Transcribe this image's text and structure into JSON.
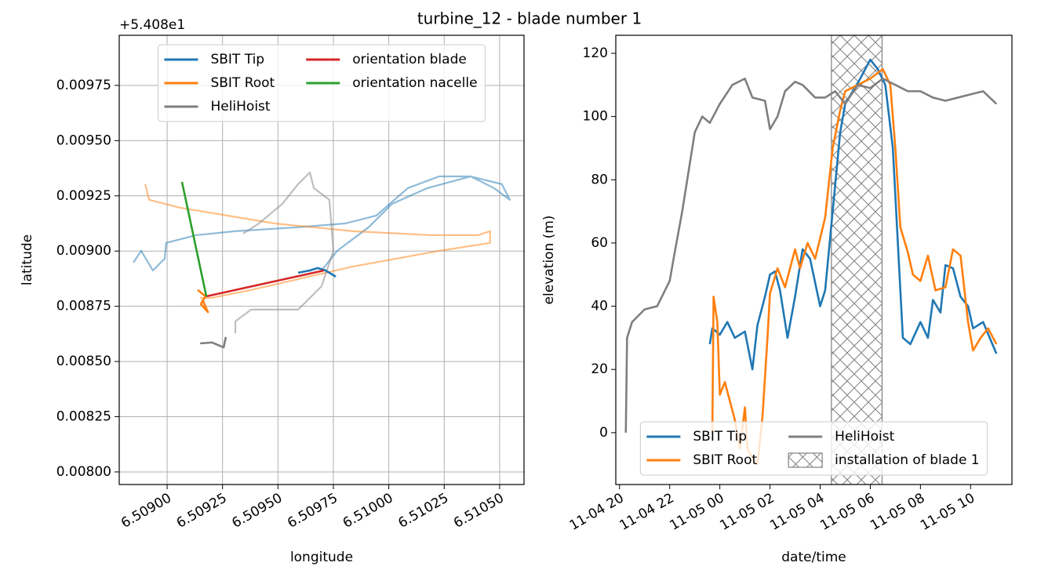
{
  "title": "turbine_12 - blade number 1",
  "chart_data": [
    {
      "type": "line",
      "offset_label": "+5.408e1",
      "xlabel": "longitude",
      "ylabel": "latitude",
      "xlim": [
        6.508784,
        6.51061
      ],
      "ylim": [
        0.007943,
        0.009977
      ],
      "grid": true,
      "xticks": [
        {
          "value": 6.509,
          "label": "6.50900"
        },
        {
          "value": 6.50925,
          "label": "6.50925"
        },
        {
          "value": 6.5095,
          "label": "6.50950"
        },
        {
          "value": 6.50975,
          "label": "6.50975"
        },
        {
          "value": 6.51,
          "label": "6.51000"
        },
        {
          "value": 6.51025,
          "label": "6.51025"
        },
        {
          "value": 6.5105,
          "label": "6.51050"
        }
      ],
      "yticks": [
        {
          "value": 0.008,
          "label": "0.00800"
        },
        {
          "value": 0.00825,
          "label": "0.00825"
        },
        {
          "value": 0.0085,
          "label": "0.00850"
        },
        {
          "value": 0.00875,
          "label": "0.00875"
        },
        {
          "value": 0.009,
          "label": "0.00900"
        },
        {
          "value": 0.00925,
          "label": "0.00925"
        },
        {
          "value": 0.0095,
          "label": "0.00950"
        },
        {
          "value": 0.00975,
          "label": "0.00975"
        }
      ],
      "legend": {
        "loc": "upper center",
        "ncol": 2
      },
      "series": [
        {
          "name": "SBIT Tip",
          "color": "#1f77b4",
          "x": [
            6.509591,
            6.509644,
            6.509679,
            6.509715,
            6.509761
          ],
          "y": [
            0.008902,
            0.008912,
            0.008923,
            0.008912,
            0.008884
          ],
          "track_x": [
            6.508848,
            6.508883,
            6.508936,
            6.508989,
            6.508996,
            6.509131,
            6.509308,
            6.509591,
            6.509803,
            6.509944,
            6.510086,
            6.510227,
            6.510369,
            6.51051,
            6.510546,
            6.510475,
            6.510369,
            6.510174,
            6.510015,
            6.509909,
            6.509767,
            6.509697
          ],
          "track_y": [
            0.008948,
            0.009001,
            0.008912,
            0.008966,
            0.009037,
            0.009072,
            0.00909,
            0.009108,
            0.009125,
            0.009161,
            0.009285,
            0.009338,
            0.009338,
            0.009303,
            0.009232,
            0.009285,
            0.009338,
            0.009285,
            0.009214,
            0.009108,
            0.009001,
            0.008912
          ]
        },
        {
          "name": "SBIT Root",
          "color": "#ff7f0e",
          "x": [
            6.509138,
            6.509173,
            6.509152,
            6.509184,
            6.509159
          ],
          "y": [
            0.008824,
            0.008795,
            0.00876,
            0.008724,
            0.008781
          ],
          "track_x": [
            6.508901,
            6.508919,
            6.50906,
            6.509485,
            6.509838,
            6.510192,
            6.510404,
            6.510457,
            6.510457,
            6.510228,
            6.509838,
            6.509379,
            6.509202,
            6.509149
          ],
          "track_y": [
            0.009303,
            0.009232,
            0.009196,
            0.009125,
            0.00909,
            0.009072,
            0.009072,
            0.00909,
            0.009037,
            0.009001,
            0.00893,
            0.008824,
            0.008788,
            0.008788
          ]
        },
        {
          "name": "HeliHoist",
          "color": "#7f7f7f",
          "x": [
            6.509149,
            6.509202,
            6.509255,
            6.509265
          ],
          "y": [
            0.008582,
            0.008586,
            0.008564,
            0.008611
          ],
          "track_x": [
            6.509343,
            6.509414,
            6.50952,
            6.509591,
            6.509644,
            6.509662,
            6.509732,
            6.50975,
            6.509697,
            6.509591,
            6.509379,
            6.509308,
            6.509308
          ],
          "track_y": [
            0.009079,
            0.009125,
            0.009214,
            0.009303,
            0.009356,
            0.009285,
            0.009232,
            0.009001,
            0.008841,
            0.008735,
            0.008735,
            0.008682,
            0.008628
          ]
        },
        {
          "name": "orientation blade",
          "color": "#d62728",
          "x": [
            6.509177,
            6.509707
          ],
          "y": [
            0.008795,
            0.008912
          ]
        },
        {
          "name": "orientation nacelle",
          "color": "#2ca02c",
          "x": [
            6.509067,
            6.509177
          ],
          "y": [
            0.009313,
            0.008795
          ]
        }
      ]
    },
    {
      "type": "line",
      "xlabel": "date/time",
      "ylabel": "elevation (m)",
      "xlim": [
        19.85,
        35.65
      ],
      "ylim": [
        -16.4,
        125.7
      ],
      "grid": false,
      "xticks": [
        {
          "value": 20,
          "label": "11-04 20"
        },
        {
          "value": 22,
          "label": "11-04 22"
        },
        {
          "value": 24,
          "label": "11-05 00"
        },
        {
          "value": 26,
          "label": "11-05 02"
        },
        {
          "value": 28,
          "label": "11-05 04"
        },
        {
          "value": 30,
          "label": "11-05 06"
        },
        {
          "value": 32,
          "label": "11-05 08"
        },
        {
          "value": 34,
          "label": "11-05 10"
        }
      ],
      "yticks": [
        0,
        20,
        40,
        60,
        80,
        100,
        120
      ],
      "legend": {
        "loc": "lower center",
        "ncol": 2
      },
      "span": {
        "name": "installation of blade 1",
        "x": [
          28.45,
          30.47
        ],
        "color": "#808080"
      },
      "series": [
        {
          "name": "SBIT Tip",
          "color": "#1f77b4",
          "x": [
            23.6,
            23.7,
            24,
            24.3,
            24.6,
            25,
            25.3,
            25.5,
            25.8,
            26,
            26.2,
            26.4,
            26.7,
            27,
            27.3,
            27.6,
            28,
            28.2,
            28.5,
            28.8,
            29,
            29.3,
            29.6,
            30,
            30.3,
            30.6,
            30.9,
            31.1,
            31.3,
            31.6,
            32,
            32.3,
            32.5,
            32.8,
            33,
            33.3,
            33.6,
            33.9,
            34.1,
            34.5,
            35.03
          ],
          "y": [
            28,
            33,
            31,
            35,
            30,
            32,
            20,
            34,
            43,
            50,
            51,
            45,
            30,
            43,
            58,
            55,
            40,
            45,
            70,
            95,
            104,
            108,
            112,
            118,
            115,
            110,
            90,
            60,
            30,
            28,
            35,
            30,
            42,
            38,
            53,
            52,
            43,
            40,
            33,
            35,
            25
          ]
        },
        {
          "name": "SBIT Root",
          "color": "#ff7f0e",
          "x": [
            23.7,
            23.75,
            23.9,
            24,
            24.2,
            24.4,
            24.6,
            24.8,
            25,
            25.1,
            25.3,
            25.5,
            25.7,
            25.9,
            26,
            26.3,
            26.6,
            27,
            27.2,
            27.5,
            27.8,
            28.2,
            28.5,
            28.8,
            29,
            29.5,
            30,
            30.5,
            30.8,
            31,
            31.2,
            31.5,
            31.7,
            32,
            32.3,
            32.6,
            33,
            33.3,
            33.6,
            33.9,
            34.1,
            34.4,
            34.7,
            35.03
          ],
          "y": [
            0,
            43,
            35,
            12,
            16,
            10,
            4,
            -5,
            8,
            -5,
            -8,
            -10,
            5,
            30,
            44,
            52,
            46,
            58,
            52,
            60,
            55,
            68,
            90,
            102,
            108,
            110,
            112,
            115,
            110,
            90,
            65,
            57,
            50,
            48,
            56,
            45,
            46,
            58,
            56,
            35,
            26,
            30,
            33,
            28
          ]
        },
        {
          "name": "HeliHoist",
          "color": "#7f7f7f",
          "x": [
            20.25,
            20.3,
            20.5,
            21,
            21.5,
            22,
            22.2,
            22.5,
            22.8,
            23,
            23.3,
            23.6,
            24,
            24.5,
            25,
            25.3,
            25.8,
            26,
            26.3,
            26.6,
            27,
            27.3,
            27.8,
            28.2,
            28.6,
            29,
            29.5,
            30,
            30.5,
            31,
            31.5,
            32,
            32.5,
            33,
            33.5,
            34,
            34.5,
            35.03
          ],
          "y": [
            0,
            30,
            35,
            39,
            40,
            48,
            57,
            70,
            85,
            95,
            100,
            98,
            104,
            110,
            112,
            106,
            105,
            96,
            100,
            108,
            111,
            110,
            106,
            106,
            108,
            104,
            110,
            109,
            112,
            110,
            108,
            108,
            106,
            105,
            106,
            107,
            108,
            104
          ]
        }
      ]
    }
  ]
}
